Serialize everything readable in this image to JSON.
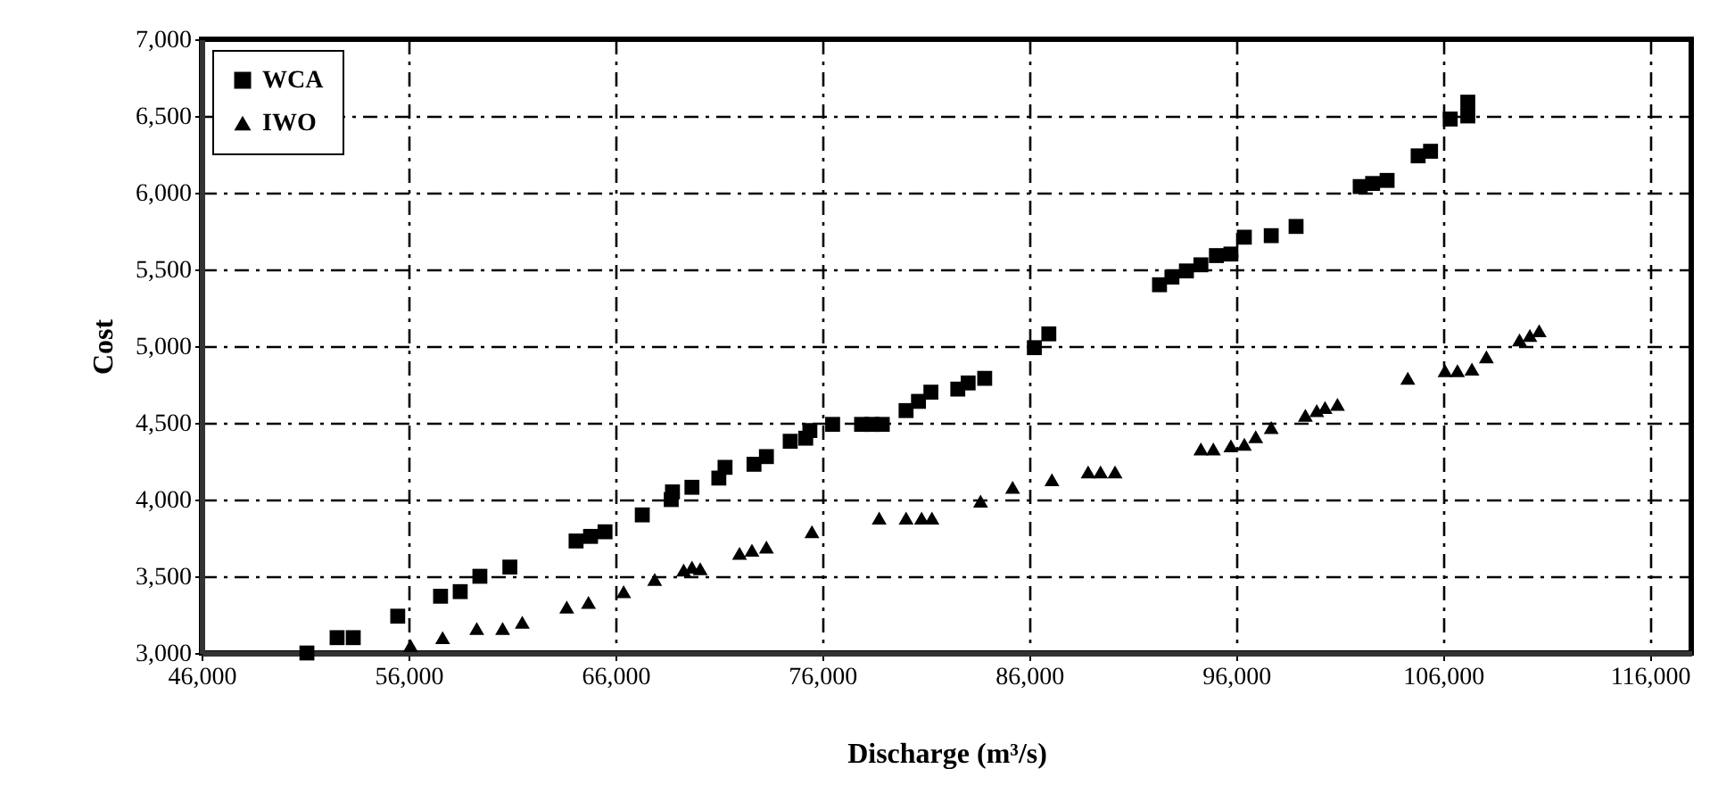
{
  "chart_data": {
    "type": "scatter",
    "xlabel": "Discharge (m³/s)",
    "ylabel": "Cost",
    "xlim": [
      46000,
      118000
    ],
    "xticks": [
      {
        "value": 46000,
        "label": "46,000"
      },
      {
        "value": 56000,
        "label": "56,000"
      },
      {
        "value": 66000,
        "label": "66,000"
      },
      {
        "value": 76000,
        "label": "76,000"
      },
      {
        "value": 86000,
        "label": "86,000"
      },
      {
        "value": 96000,
        "label": "96,000"
      },
      {
        "value": 106000,
        "label": "106,000"
      },
      {
        "value": 116000,
        "label": "116,000"
      }
    ],
    "ylim": [
      3000,
      7000
    ],
    "yticks": [
      {
        "value": 3000,
        "label": "3,000"
      },
      {
        "value": 3500,
        "label": "3,500"
      },
      {
        "value": 4000,
        "label": "4,000"
      },
      {
        "value": 4500,
        "label": "4,500"
      },
      {
        "value": 5000,
        "label": "5,000"
      },
      {
        "value": 5500,
        "label": "5,500"
      },
      {
        "value": 6000,
        "label": "6,000"
      },
      {
        "value": 6500,
        "label": "6,500"
      },
      {
        "value": 7000,
        "label": "7,000"
      }
    ],
    "grid": true,
    "legend": "top left",
    "series": [
      {
        "name": "WCA",
        "color": "#000000",
        "marker": "square",
        "x": [
          51090,
          52550,
          53330,
          55480,
          57550,
          58500,
          59450,
          60900,
          64100,
          64800,
          65500,
          67300,
          68700,
          68760,
          69700,
          71000,
          71300,
          72700,
          73300,
          74450,
          75200,
          75400,
          76500,
          77900,
          78400,
          78900,
          80050,
          80650,
          81250,
          82550,
          83050,
          83850,
          86250,
          86950,
          92300,
          92900,
          93600,
          94300,
          95050,
          95750,
          96400,
          97700,
          98900,
          102000,
          102600,
          103300,
          104800,
          105400,
          106350,
          107200,
          107200
        ],
        "values": [
          3000,
          3100,
          3100,
          3240,
          3370,
          3400,
          3500,
          3560,
          3730,
          3760,
          3790,
          3900,
          4000,
          4050,
          4080,
          4140,
          4210,
          4230,
          4280,
          4380,
          4400,
          4450,
          4490,
          4490,
          4490,
          4490,
          4580,
          4640,
          4700,
          4720,
          4760,
          4790,
          4990,
          5080,
          5400,
          5450,
          5490,
          5530,
          5590,
          5600,
          5710,
          5720,
          5780,
          6040,
          6060,
          6080,
          6240,
          6270,
          6480,
          6500,
          6590
        ]
      },
      {
        "name": "IWO",
        "color": "#000000",
        "marker": "triangle",
        "x": [
          56100,
          57650,
          59300,
          60550,
          61500,
          63650,
          64700,
          66400,
          67900,
          69300,
          69700,
          70100,
          72000,
          72600,
          73300,
          75500,
          78750,
          80050,
          80800,
          81300,
          83650,
          85200,
          87100,
          88850,
          89450,
          90150,
          94300,
          94900,
          95750,
          96400,
          96950,
          97700,
          99350,
          99900,
          100300,
          100900,
          104300,
          106100,
          106700,
          107400,
          108100,
          109700,
          110200,
          110650
        ],
        "values": [
          3050,
          3100,
          3160,
          3160,
          3200,
          3300,
          3330,
          3400,
          3480,
          3540,
          3560,
          3550,
          3650,
          3670,
          3690,
          3790,
          3880,
          3880,
          3880,
          3880,
          3990,
          4080,
          4130,
          4180,
          4180,
          4180,
          4330,
          4330,
          4350,
          4360,
          4410,
          4470,
          4550,
          4580,
          4600,
          4620,
          4790,
          4840,
          4840,
          4850,
          4930,
          5040,
          5070,
          5100
        ]
      }
    ]
  }
}
